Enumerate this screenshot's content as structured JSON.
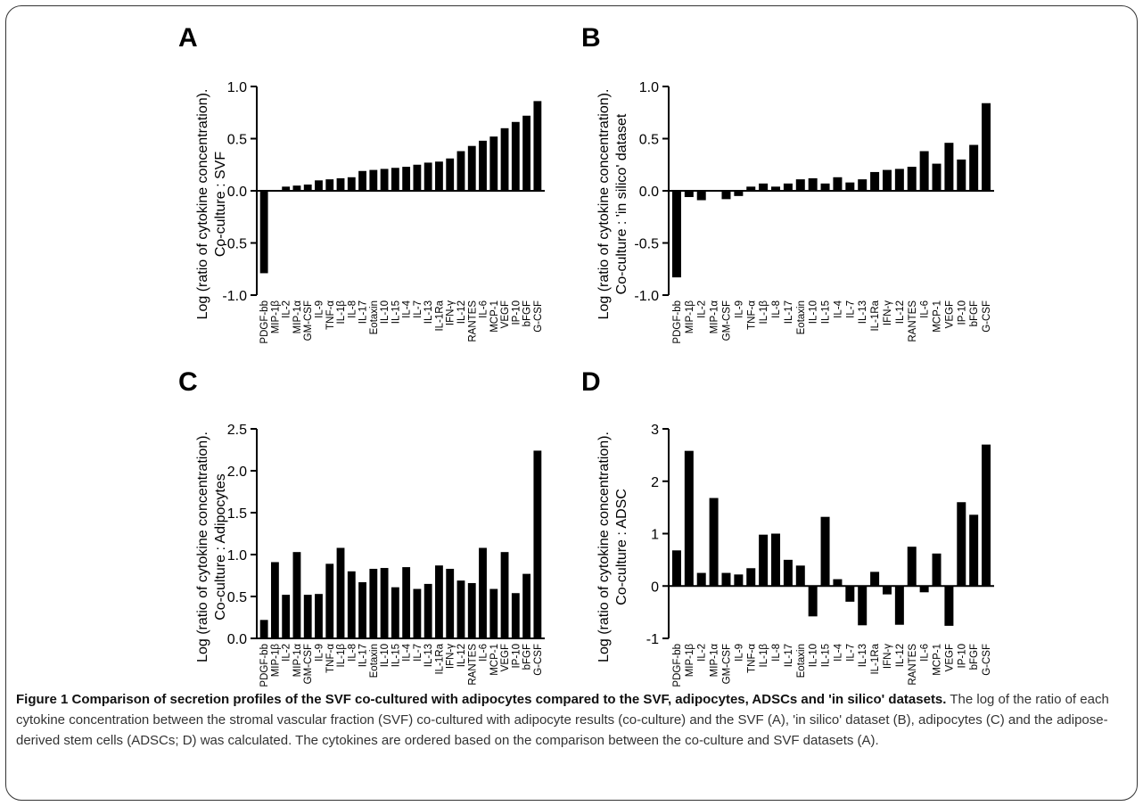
{
  "chart_data": [
    {
      "panel": "A",
      "type": "bar",
      "ylabel_line1": "Log (ratio of cytokine concentration).",
      "ylabel_line2": "Co-culture : SVF",
      "ylim": [
        -1.0,
        1.0
      ],
      "yticks": [
        "1.0",
        "0.5",
        "0.0",
        "-0.5",
        "-1.0"
      ],
      "ytick_values": [
        1.0,
        0.5,
        0.0,
        -0.5,
        -1.0
      ],
      "categories": [
        "PDGF-bb",
        "MIP-1β",
        "IL-2",
        "MIP-1α",
        "GM-CSF",
        "IL-9",
        "TNF-α",
        "IL-1β",
        "IL-8",
        "IL-17",
        "Eotaxin",
        "IL-10",
        "IL-15",
        "IL-4",
        "IL-7",
        "IL-13",
        "IL-1Ra",
        "IFN-γ",
        "IL-12",
        "RANTES",
        "IL-6",
        "MCP-1",
        "VEGF",
        "IP-10",
        "bFGF",
        "G-CSF"
      ],
      "values": [
        -0.79,
        0.0,
        0.04,
        0.05,
        0.06,
        0.1,
        0.11,
        0.12,
        0.13,
        0.19,
        0.2,
        0.21,
        0.22,
        0.23,
        0.25,
        0.27,
        0.28,
        0.31,
        0.38,
        0.43,
        0.48,
        0.52,
        0.6,
        0.66,
        0.72,
        0.86
      ]
    },
    {
      "panel": "B",
      "type": "bar",
      "ylabel_line1": "Log (ratio of cytokine concentration).",
      "ylabel_line2": "Co-culture : 'in silico' dataset",
      "ylim": [
        -1.0,
        1.0
      ],
      "yticks": [
        "1.0",
        "0.5",
        "0.0",
        "-0.5",
        "-1.0"
      ],
      "ytick_values": [
        1.0,
        0.5,
        0.0,
        -0.5,
        -1.0
      ],
      "categories": [
        "PDGF-bb",
        "MIP-1β",
        "IL-2",
        "MIP-1α",
        "GM-CSF",
        "IL-9",
        "TNF-α",
        "IL-1β",
        "IL-8",
        "IL-17",
        "Eotaxin",
        "IL-10",
        "IL-15",
        "IL-4",
        "IL-7",
        "IL-13",
        "IL-1Ra",
        "IFN-γ",
        "IL-12",
        "RANTES",
        "IL-6",
        "MCP-1",
        "VEGF",
        "IP-10",
        "bFGF",
        "G-CSF"
      ],
      "values": [
        -0.83,
        -0.06,
        -0.09,
        0.0,
        -0.08,
        -0.05,
        0.04,
        0.07,
        0.04,
        0.07,
        0.11,
        0.12,
        0.07,
        0.13,
        0.08,
        0.11,
        0.18,
        0.2,
        0.21,
        0.23,
        0.38,
        0.26,
        0.46,
        0.3,
        0.44,
        0.84
      ]
    },
    {
      "panel": "C",
      "type": "bar",
      "ylabel_line1": "Log (ratio of cytokine concentration).",
      "ylabel_line2": "Co-culture : Adipocytes",
      "ylim": [
        0.0,
        2.5
      ],
      "yticks": [
        "2.5",
        "2.0",
        "1.5",
        "1.0",
        "0.5",
        "0.0"
      ],
      "ytick_values": [
        2.5,
        2.0,
        1.5,
        1.0,
        0.5,
        0.0
      ],
      "categories": [
        "PDGF-bb",
        "MIP-1β",
        "IL-2",
        "MIP-1α",
        "GM-CSF",
        "IL-9",
        "TNF-α",
        "IL-1β",
        "IL-8",
        "IL-17",
        "Eotaxin",
        "IL-10",
        "IL-15",
        "IL-4",
        "IL-7",
        "IL-13",
        "IL-1Ra",
        "IFN-γ",
        "IL-12",
        "RANTES",
        "IL-6",
        "MCP-1",
        "VEGF",
        "IP-10",
        "bFGF",
        "G-CSF"
      ],
      "values": [
        0.22,
        0.91,
        0.52,
        1.03,
        0.52,
        0.53,
        0.89,
        1.08,
        0.8,
        0.67,
        0.83,
        0.84,
        0.61,
        0.85,
        0.59,
        0.65,
        0.87,
        0.83,
        0.69,
        0.66,
        1.08,
        0.59,
        1.03,
        0.54,
        0.77,
        2.24
      ]
    },
    {
      "panel": "D",
      "type": "bar",
      "ylabel_line1": "Log (ratio of cytokine concentration).",
      "ylabel_line2": "Co-culture : ADSC",
      "ylim": [
        -1,
        3
      ],
      "yticks": [
        "3",
        "2",
        "1",
        "0",
        "-1"
      ],
      "ytick_values": [
        3,
        2,
        1,
        0,
        -1
      ],
      "categories": [
        "PDGF-bb",
        "MIP-1β",
        "IL-2",
        "MIP-1α",
        "GM-CSF",
        "IL-9",
        "TNF-α",
        "IL-1β",
        "IL-8",
        "IL-17",
        "Eotaxin",
        "IL-10",
        "IL-15",
        "IL-4",
        "IL-7",
        "IL-13",
        "IL-1Ra",
        "IFN-γ",
        "IL-12",
        "RANTES",
        "IL-6",
        "MCP-1",
        "VEGF",
        "IP-10",
        "bFGF",
        "G-CSF"
      ],
      "values": [
        0.68,
        2.58,
        0.25,
        1.68,
        0.25,
        0.22,
        0.34,
        0.98,
        1.0,
        0.5,
        0.39,
        -0.58,
        1.32,
        0.13,
        -0.3,
        -0.75,
        0.27,
        -0.16,
        -0.74,
        0.75,
        -0.12,
        0.62,
        -0.76,
        1.6,
        1.36,
        2.7
      ]
    }
  ],
  "caption": {
    "title": "Figure 1 Comparison of secretion profiles of the SVF co-cultured with adipocytes compared to the SVF, adipocytes, ADSCs and 'in silico' datasets.",
    "body": " The log of the ratio of each cytokine concentration between the stromal vascular fraction (SVF) co-cultured with adipocyte results (co-culture) and the SVF (A), 'in silico' dataset (B), adipocytes (C) and the adipose-derived stem cells (ADSCs; D) was calculated. The cytokines are ordered based on the comparison between the co-culture and SVF datasets (A)."
  }
}
